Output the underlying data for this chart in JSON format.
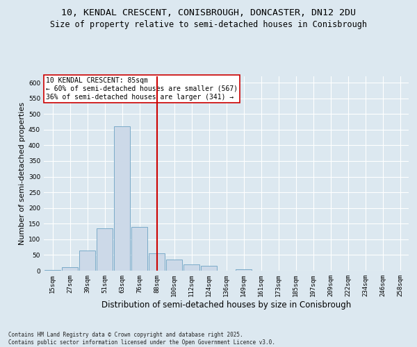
{
  "title1": "10, KENDAL CRESCENT, CONISBROUGH, DONCASTER, DN12 2DU",
  "title2": "Size of property relative to semi-detached houses in Conisbrough",
  "xlabel": "Distribution of semi-detached houses by size in Conisbrough",
  "ylabel": "Number of semi-detached properties",
  "categories": [
    "15sqm",
    "27sqm",
    "39sqm",
    "51sqm",
    "63sqm",
    "76sqm",
    "88sqm",
    "100sqm",
    "112sqm",
    "124sqm",
    "136sqm",
    "149sqm",
    "161sqm",
    "173sqm",
    "185sqm",
    "197sqm",
    "209sqm",
    "222sqm",
    "234sqm",
    "246sqm",
    "258sqm"
  ],
  "values": [
    2,
    10,
    65,
    135,
    460,
    140,
    55,
    35,
    20,
    15,
    0,
    5,
    0,
    0,
    0,
    0,
    0,
    0,
    0,
    0,
    0
  ],
  "bar_color": "#ccd9e8",
  "bar_edge_color": "#7aaac8",
  "vline_x_index": 5,
  "vline_color": "#cc0000",
  "annotation_text": "10 KENDAL CRESCENT: 85sqm\n← 60% of semi-detached houses are smaller (567)\n36% of semi-detached houses are larger (341) →",
  "annotation_box_color": "#ffffff",
  "annotation_box_edge": "#cc0000",
  "bg_color": "#dce8f0",
  "plot_bg_color": "#dce8f0",
  "grid_color": "#ffffff",
  "ylim": [
    0,
    620
  ],
  "yticks": [
    0,
    50,
    100,
    150,
    200,
    250,
    300,
    350,
    400,
    450,
    500,
    550,
    600
  ],
  "footer": "Contains HM Land Registry data © Crown copyright and database right 2025.\nContains public sector information licensed under the Open Government Licence v3.0.",
  "title_fontsize": 9.5,
  "subtitle_fontsize": 8.5,
  "tick_fontsize": 6.5,
  "ylabel_fontsize": 8,
  "xlabel_fontsize": 8.5,
  "annotation_fontsize": 7,
  "footer_fontsize": 5.5
}
